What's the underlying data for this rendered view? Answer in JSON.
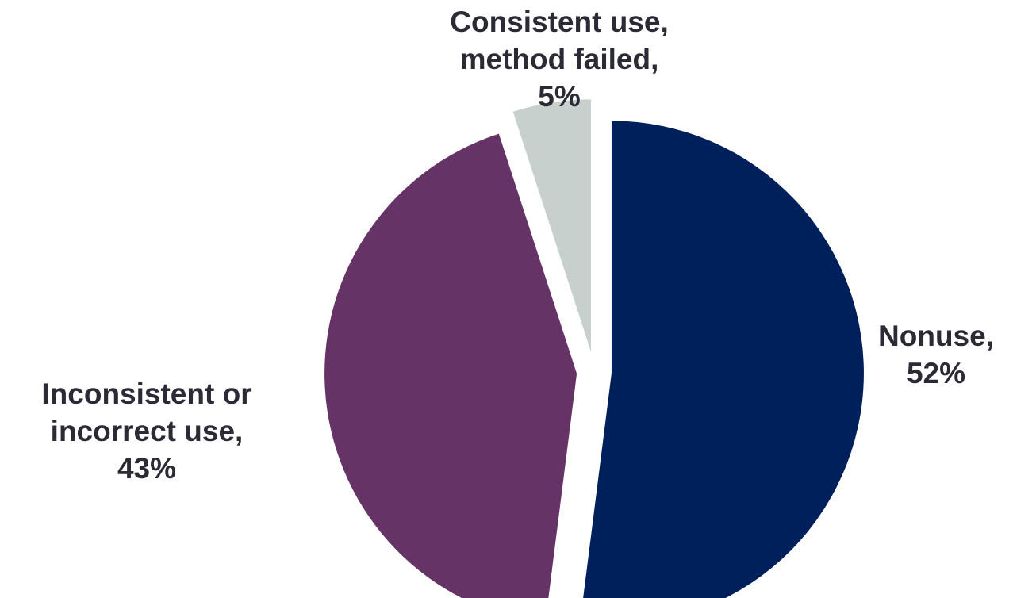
{
  "chart_data": {
    "type": "pie",
    "start_angle_deg": 0,
    "direction": "clockwise",
    "exploded": true,
    "slices": [
      {
        "label_lines": [
          "Nonuse,",
          "52%"
        ],
        "category": "Nonuse",
        "value": 52,
        "color": "#00205c"
      },
      {
        "label_lines": [
          "Inconsistent or",
          "incorrect use,",
          "43%"
        ],
        "category": "Inconsistent or incorrect use",
        "value": 43,
        "color": "#663366"
      },
      {
        "label_lines": [
          "Consistent use,",
          "method failed,",
          "5%"
        ],
        "category": "Consistent use, method failed",
        "value": 5,
        "color": "#c7d0cd"
      }
    ]
  }
}
